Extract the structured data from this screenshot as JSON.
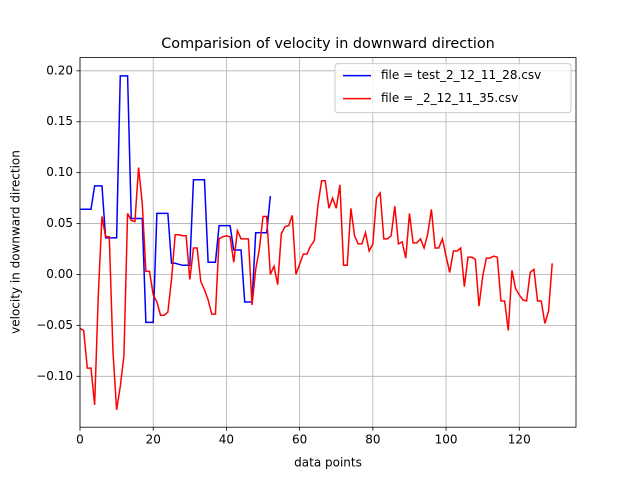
{
  "chart_data": {
    "type": "line",
    "title": "Comparision of velocity in downward direction",
    "x_label": "data points",
    "y_label": "velocity in downward direction",
    "xlim": [
      0,
      135.5
    ],
    "ylim": [
      -0.15,
      0.213
    ],
    "xticks": [
      0,
      20,
      40,
      60,
      80,
      100,
      120
    ],
    "yticks": [
      {
        "value": -0.1,
        "label": "−0.10"
      },
      {
        "value": -0.05,
        "label": "−0.05"
      },
      {
        "value": 0,
        "label": "0.00"
      },
      {
        "value": 0.05,
        "label": "0.05"
      },
      {
        "value": 0.1,
        "label": "0.10"
      },
      {
        "value": 0.15,
        "label": "0.15"
      },
      {
        "value": 0.2,
        "label": "0.20"
      }
    ],
    "grid": true,
    "legend": "upper right",
    "series": [
      {
        "name": "file = test_2_12_11_28.csv",
        "color": "#0000ff",
        "x": [
          0,
          1,
          2,
          3,
          4,
          5,
          6,
          7,
          8,
          9,
          10,
          11,
          12,
          13,
          14,
          15,
          16,
          17,
          18,
          19,
          20,
          21,
          22,
          23,
          24,
          25,
          26,
          27,
          28,
          29,
          30,
          31,
          32,
          33,
          34,
          35,
          36,
          37,
          38,
          39,
          40,
          41,
          42,
          43,
          44,
          45,
          46,
          47,
          48,
          49,
          50,
          51,
          52
        ],
        "values": [
          0.064,
          0.064,
          0.064,
          0.064,
          0.087,
          0.087,
          0.087,
          0.036,
          0.036,
          0.036,
          0.036,
          0.195,
          0.195,
          0.195,
          0.055,
          0.055,
          0.055,
          0.055,
          -0.047,
          -0.047,
          -0.047,
          0.06,
          0.06,
          0.06,
          0.06,
          0.011,
          0.011,
          0.01,
          0.009,
          0.009,
          0.009,
          0.093,
          0.093,
          0.093,
          0.093,
          0.012,
          0.012,
          0.012,
          0.048,
          0.048,
          0.048,
          0.048,
          0.024,
          0.024,
          0.024,
          -0.027,
          -0.027,
          -0.027,
          0.041,
          0.041,
          0.041,
          0.041,
          0.077
        ]
      },
      {
        "name": "file = _2_12_11_35.csv",
        "color": "#ff0000",
        "x": [
          0,
          1,
          2,
          3,
          4,
          5,
          6,
          7,
          8,
          9,
          10,
          11,
          12,
          13,
          14,
          15,
          16,
          17,
          18,
          19,
          20,
          21,
          22,
          23,
          24,
          25,
          26,
          27,
          28,
          29,
          30,
          31,
          32,
          33,
          34,
          35,
          36,
          37,
          38,
          39,
          40,
          41,
          42,
          43,
          44,
          45,
          46,
          47,
          48,
          49,
          50,
          51,
          52,
          53,
          54,
          55,
          56,
          57,
          58,
          59,
          60,
          61,
          62,
          63,
          64,
          65,
          66,
          67,
          68,
          69,
          70,
          71,
          72,
          73,
          74,
          75,
          76,
          77,
          78,
          79,
          80,
          81,
          82,
          83,
          84,
          85,
          86,
          87,
          88,
          89,
          90,
          91,
          92,
          93,
          94,
          95,
          96,
          97,
          98,
          99,
          100,
          101,
          102,
          103,
          104,
          105,
          106,
          107,
          108,
          109,
          110,
          111,
          112,
          113,
          114,
          115,
          116,
          117,
          118,
          119,
          120,
          121,
          122,
          123,
          124,
          125,
          126,
          127,
          128,
          129
        ],
        "values": [
          -0.053,
          -0.055,
          -0.092,
          -0.092,
          -0.128,
          -0.02,
          0.057,
          0.037,
          0.037,
          -0.075,
          -0.133,
          -0.11,
          -0.08,
          0.06,
          0.053,
          0.052,
          0.105,
          0.07,
          0.003,
          0.003,
          -0.02,
          -0.027,
          -0.04,
          -0.04,
          -0.037,
          -0.005,
          0.039,
          0.039,
          0.038,
          0.038,
          -0.005,
          0.026,
          0.026,
          -0.007,
          -0.015,
          -0.025,
          -0.039,
          -0.039,
          0.035,
          0.037,
          0.038,
          0.037,
          0.012,
          0.043,
          0.035,
          0.035,
          0.035,
          -0.03,
          0.005,
          0.025,
          0.057,
          0.057,
          0.0,
          0.008,
          -0.01,
          0.04,
          0.047,
          0.048,
          0.058,
          0.0,
          0.01,
          0.02,
          0.02,
          0.028,
          0.033,
          0.068,
          0.092,
          0.092,
          0.065,
          0.075,
          0.065,
          0.088,
          0.009,
          0.009,
          0.065,
          0.038,
          0.03,
          0.03,
          0.041,
          0.023,
          0.03,
          0.075,
          0.08,
          0.035,
          0.035,
          0.038,
          0.067,
          0.03,
          0.032,
          0.016,
          0.06,
          0.031,
          0.031,
          0.035,
          0.026,
          0.04,
          0.064,
          0.026,
          0.026,
          0.035,
          0.018,
          0.002,
          0.023,
          0.023,
          0.026,
          -0.012,
          0.017,
          0.017,
          0.015,
          -0.031,
          -0.002,
          0.016,
          0.016,
          0.018,
          0.017,
          -0.026,
          -0.026,
          -0.055,
          0.004,
          -0.014,
          -0.02,
          -0.025,
          -0.026,
          0.002,
          0.005,
          -0.026,
          -0.026,
          -0.048,
          -0.036,
          0.011
        ]
      }
    ]
  }
}
